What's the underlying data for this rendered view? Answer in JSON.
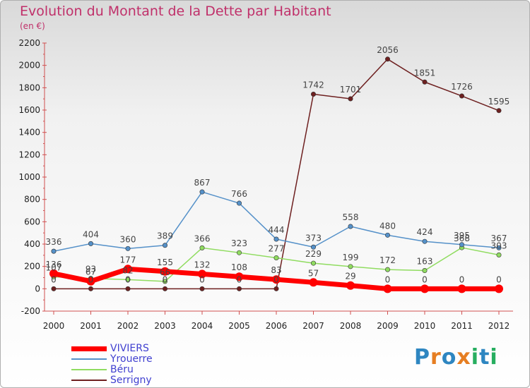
{
  "title": "Evolution du Montant de la Dette par Habitant",
  "unit_label": "(en €)",
  "logo": {
    "text": "Proxiti",
    "letters": [
      {
        "ch": "P",
        "color": "#2e86c1"
      },
      {
        "ch": "r",
        "color": "#e67e22"
      },
      {
        "ch": "o",
        "color": "#2e86c1"
      },
      {
        "ch": "x",
        "color": "#e67e22"
      },
      {
        "ch": "i",
        "color": "#27ae60"
      },
      {
        "ch": "t",
        "color": "#2e86c1"
      },
      {
        "ch": "i",
        "color": "#27ae60"
      }
    ]
  },
  "chart_data": {
    "type": "line",
    "x": [
      "2000",
      "2001",
      "2002",
      "2003",
      "2004",
      "2005",
      "2006",
      "2007",
      "2008",
      "2009",
      "2010",
      "2011",
      "2012"
    ],
    "ylim": [
      -200,
      2200
    ],
    "yticks": [
      -200,
      0,
      200,
      400,
      600,
      800,
      1000,
      1200,
      1400,
      1600,
      1800,
      2000,
      2200
    ],
    "grid": false,
    "legend_position": "bottom-left",
    "series": [
      {
        "name": "VIVIERS",
        "color": "#ff0000",
        "width": 7,
        "values": [
          136,
          67,
          177,
          155,
          132,
          108,
          83,
          57,
          29,
          0,
          0,
          0,
          0
        ],
        "labels": [
          "136",
          "67",
          "177",
          "155",
          "132",
          "108",
          "83",
          "57",
          "29",
          "0",
          "0",
          "0",
          "0"
        ]
      },
      {
        "name": "Yrouerre",
        "color": "#5591c9",
        "width": 1.5,
        "values": [
          336,
          404,
          360,
          389,
          867,
          766,
          444,
          373,
          558,
          480,
          424,
          395,
          367
        ],
        "labels": [
          "336",
          "404",
          "360",
          "389",
          "867",
          "766",
          "444",
          "373",
          "558",
          "480",
          "424",
          "395",
          "367"
        ]
      },
      {
        "name": "Béru",
        "color": "#90dc60",
        "width": 1.5,
        "values": [
          107,
          93,
          82,
          66,
          366,
          323,
          277,
          229,
          199,
          172,
          163,
          368,
          303
        ],
        "labels": [
          "107",
          "93",
          "82",
          "66",
          "366",
          "323",
          "277",
          "229",
          "199",
          "172",
          "163",
          "368",
          "303"
        ]
      },
      {
        "name": "Serrigny",
        "color": "#6e2020",
        "width": 1.5,
        "values": [
          0,
          0,
          0,
          0,
          0,
          0,
          0,
          1742,
          1701,
          2056,
          1851,
          1726,
          1595
        ],
        "labels": [
          "0",
          "0",
          "0",
          "0",
          "0",
          "0",
          "0",
          "1742",
          "1701",
          "2056",
          "1851",
          "1726",
          "1595"
        ]
      }
    ]
  }
}
